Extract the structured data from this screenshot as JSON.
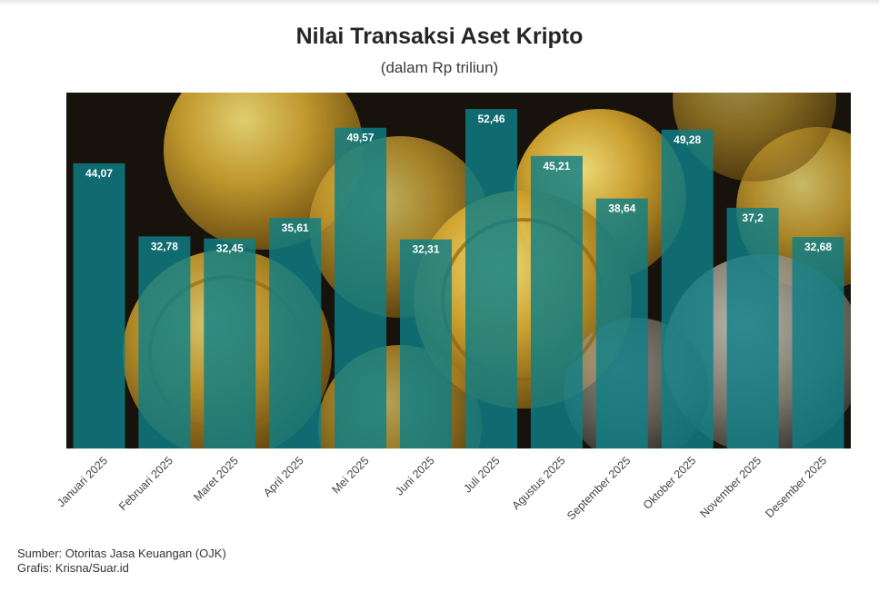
{
  "header": {
    "title": "Nilai Transaksi Aset Kripto",
    "subtitle": "(dalam Rp triliun)"
  },
  "footer": {
    "source": "Sumber: Otoritas Jasa Keuangan (OJK)",
    "credit": "Grafis: Krisna/Suar.id"
  },
  "colors": {
    "bar": "#0f7f86",
    "label_text": "#ffffff",
    "axis_text": "#444444"
  },
  "chart_data": {
    "type": "bar",
    "title": "Nilai Transaksi Aset Kripto",
    "subtitle": "(dalam Rp triliun)",
    "xlabel": "",
    "ylabel": "",
    "categories": [
      "Januari 2025",
      "Februari 2025",
      "Maret 2025",
      "April 2025",
      "Mei 2025",
      "Juni 2025",
      "Juli 2025",
      "Agustus 2025",
      "September 2025",
      "Oktober 2025",
      "November 2025",
      "Desember 2025"
    ],
    "values": [
      44.07,
      32.78,
      32.45,
      35.61,
      49.57,
      32.31,
      52.46,
      45.21,
      38.64,
      49.28,
      37.2,
      32.68
    ],
    "value_labels": [
      "44,07",
      "32,78",
      "32,45",
      "35,61",
      "49,57",
      "32,31",
      "52,46",
      "45,21",
      "38,64",
      "49,28",
      "37,2",
      "32,68"
    ],
    "ylim": [
      0,
      55
    ],
    "grid": false,
    "legend": "none",
    "background": "photo of cryptocurrency coins"
  }
}
